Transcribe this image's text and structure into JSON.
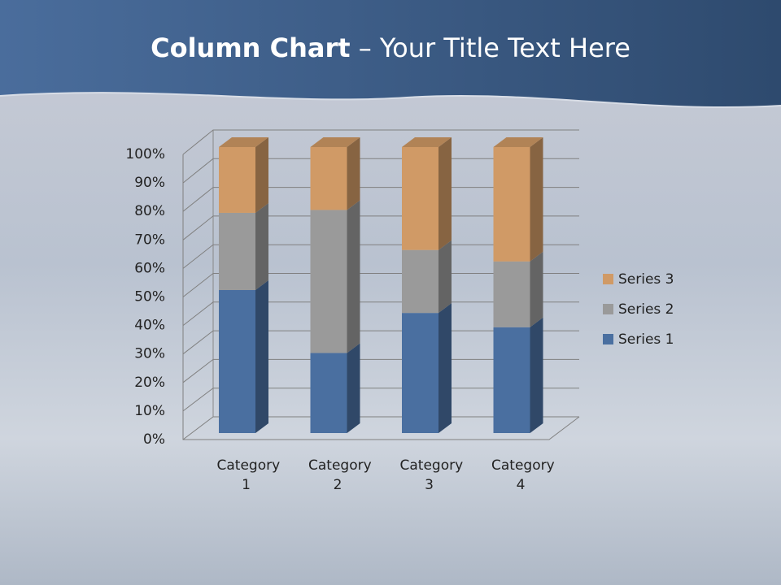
{
  "chart_data": {
    "type": "stacked_bar_3d",
    "title_bold": "Column Chart",
    "title_rest": "– Your Title Text Here",
    "categories": [
      "Category 1",
      "Category 2",
      "Category 3",
      "Category 4"
    ],
    "series": [
      {
        "name": "Series 1",
        "color": "#4a6fa0",
        "values": [
          50,
          28,
          42,
          37
        ]
      },
      {
        "name": "Series 2",
        "color": "#9a9a9a",
        "values": [
          27,
          50,
          22,
          23
        ]
      },
      {
        "name": "Series 3",
        "color": "#d09a66",
        "values": [
          23,
          22,
          36,
          40
        ]
      }
    ],
    "ylim": [
      0,
      100
    ],
    "yticks": [
      {
        "value": 0,
        "label": "0%"
      },
      {
        "value": 10,
        "label": "10%"
      },
      {
        "value": 20,
        "label": "20%"
      },
      {
        "value": 30,
        "label": "30%"
      },
      {
        "value": 40,
        "label": "40%"
      },
      {
        "value": 50,
        "label": "50%"
      },
      {
        "value": 60,
        "label": "60%"
      },
      {
        "value": 70,
        "label": "70%"
      },
      {
        "value": 80,
        "label": "80%"
      },
      {
        "value": 90,
        "label": "90%"
      },
      {
        "value": 100,
        "label": "100%"
      }
    ],
    "grid": true,
    "legend": "right"
  }
}
